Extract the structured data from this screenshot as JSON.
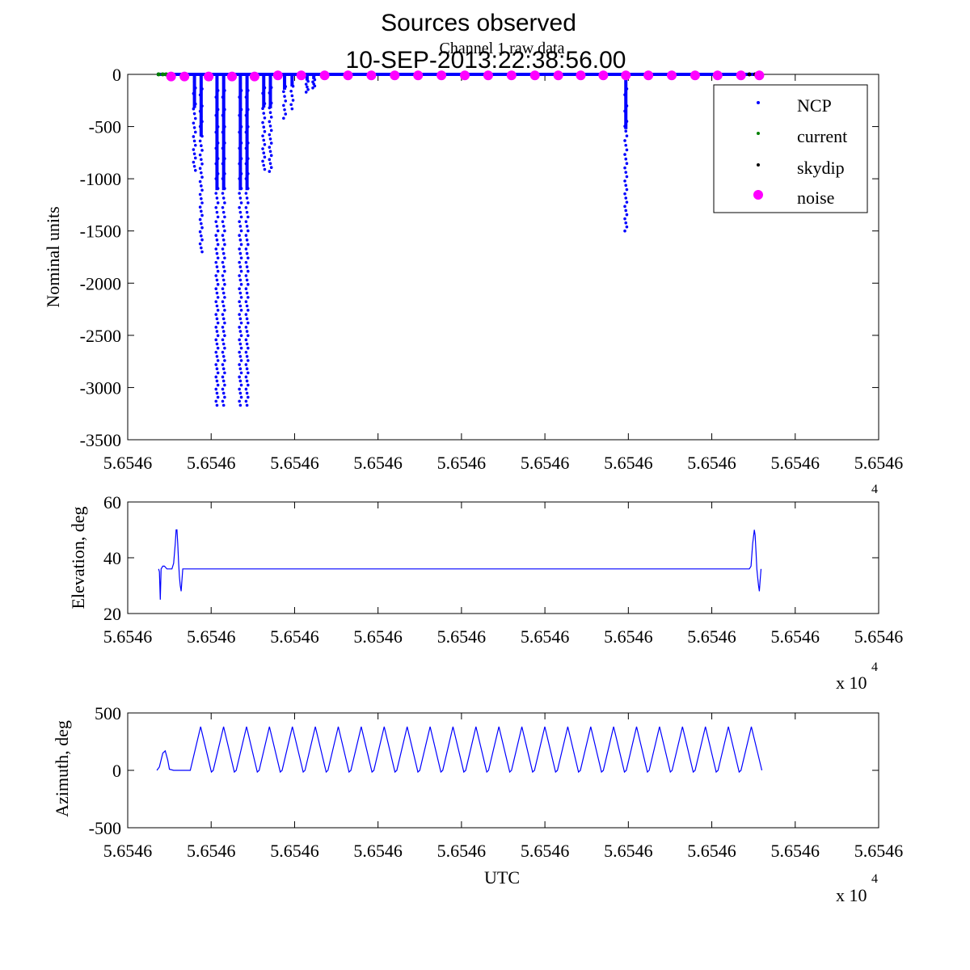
{
  "figure": {
    "title_line1": "Sources observed",
    "title_line2": "10-SEP-2013:22:38:56.00"
  },
  "colors": {
    "ncp": "#0000ff",
    "current": "#008000",
    "skydip": "#000000",
    "noise": "#ff00ff",
    "line": "#0000ff"
  },
  "chart_data": [
    {
      "type": "scatter",
      "title": "Channel 1 raw data",
      "xlabel": "",
      "ylabel": "Nominal units",
      "ylim": [
        -3500,
        0
      ],
      "yticks": [
        0,
        -500,
        -1000,
        -1500,
        -2000,
        -2500,
        -3000,
        -3500
      ],
      "xlim": [
        0,
        9
      ],
      "xtick_labels": [
        "5.6546",
        "5.6546",
        "5.6546",
        "5.6546",
        "5.6546",
        "5.6546",
        "5.6546",
        "5.6546",
        "5.6546",
        "5.6546"
      ],
      "x_multiplier": "x 10",
      "x_multiplier_exp": "4",
      "legend_position": "top-right",
      "legend": [
        "NCP",
        "current",
        "skydip",
        "noise"
      ],
      "series": [
        {
          "name": "NCP",
          "marker": "dot",
          "dips": [
            {
              "x": 0.8,
              "min": -920
            },
            {
              "x": 0.88,
              "min": -1700
            },
            {
              "x": 1.07,
              "min": -3170
            },
            {
              "x": 1.15,
              "min": -3170
            },
            {
              "x": 1.35,
              "min": -3170
            },
            {
              "x": 1.43,
              "min": -3170
            },
            {
              "x": 1.63,
              "min": -910
            },
            {
              "x": 1.71,
              "min": -930
            },
            {
              "x": 1.88,
              "min": -420
            },
            {
              "x": 1.97,
              "min": -330
            },
            {
              "x": 2.15,
              "min": -170
            },
            {
              "x": 2.23,
              "min": -130
            },
            {
              "x": 5.97,
              "min": -1500
            }
          ],
          "baseline_x": [
            0.35,
            7.55
          ]
        },
        {
          "name": "current",
          "marker": "dot",
          "x": [
            0.37,
            0.42,
            0.46
          ],
          "y": [
            0,
            0,
            0
          ]
        },
        {
          "name": "skydip",
          "marker": "dot",
          "x": [
            7.45,
            7.52,
            7.57
          ],
          "y": [
            0,
            0,
            0
          ]
        },
        {
          "name": "noise",
          "marker": "circle",
          "x": [
            0.52,
            0.68,
            0.97,
            1.25,
            1.52,
            1.8,
            2.08,
            2.36,
            2.64,
            2.92,
            3.2,
            3.48,
            3.76,
            4.04,
            4.32,
            4.6,
            4.88,
            5.16,
            5.43,
            5.7,
            5.97,
            6.24,
            6.52,
            6.8,
            7.07,
            7.35,
            7.57
          ],
          "y": [
            -20,
            -20,
            -20,
            -20,
            -20,
            -10,
            -10,
            -10,
            -10,
            -10,
            -10,
            -10,
            -10,
            -10,
            -10,
            -10,
            -10,
            -10,
            -10,
            -10,
            -10,
            -10,
            -10,
            -10,
            -10,
            -10,
            -10
          ]
        }
      ]
    },
    {
      "type": "line",
      "title": "",
      "xlabel": "",
      "ylabel": "Elevation, deg",
      "ylim": [
        20,
        60
      ],
      "yticks": [
        20,
        40,
        60
      ],
      "xlim": [
        0,
        9
      ],
      "xtick_labels": [
        "5.6546",
        "5.6546",
        "5.6546",
        "5.6546",
        "5.6546",
        "5.6546",
        "5.6546",
        "5.6546",
        "5.6546",
        "5.6546"
      ],
      "x_multiplier": "x 10",
      "x_multiplier_exp": "4",
      "series": [
        {
          "x": [
            0.37,
            0.38,
            0.39,
            0.4,
            0.42,
            0.44,
            0.47,
            0.5,
            0.53,
            0.55,
            0.57,
            0.58,
            0.59,
            0.6,
            0.61,
            0.62,
            0.63,
            0.64,
            0.65,
            0.66,
            0.68,
            0.7,
            0.72,
            7.45,
            7.47,
            7.49,
            7.51,
            7.52,
            7.53,
            7.54,
            7.55,
            7.56,
            7.57,
            7.58,
            7.59
          ],
          "y": [
            36,
            35,
            25,
            36,
            37,
            37,
            36,
            36,
            36,
            38,
            45,
            50,
            50,
            45,
            38,
            33,
            30,
            28,
            32,
            36,
            36,
            36,
            36,
            36,
            37,
            45,
            50,
            48,
            42,
            36,
            33,
            30,
            28,
            32,
            36
          ]
        }
      ]
    },
    {
      "type": "line",
      "title": "",
      "xlabel": "UTC",
      "ylabel": "Azimuth, deg",
      "ylim": [
        -500,
        500
      ],
      "yticks": [
        -500,
        0,
        500
      ],
      "xlim": [
        0,
        9
      ],
      "xtick_labels": [
        "5.6546",
        "5.6546",
        "5.6546",
        "5.6546",
        "5.6546",
        "5.6546",
        "5.6546",
        "5.6546",
        "5.6546",
        "5.6546"
      ],
      "x_multiplier": "x 10",
      "x_multiplier_exp": "4",
      "series": [
        {
          "sweep_start": 0.75,
          "sweep_period": 0.275,
          "sweep_count": 25,
          "sweep_peak": 380,
          "sweep_trough": -15,
          "pre_x": [
            0.35,
            0.38,
            0.42,
            0.45,
            0.48,
            0.5,
            0.55,
            0.6,
            0.7,
            0.75
          ],
          "pre_y": [
            0,
            30,
            150,
            170,
            90,
            10,
            0,
            0,
            0,
            0
          ],
          "end_x": 7.6
        }
      ]
    }
  ]
}
